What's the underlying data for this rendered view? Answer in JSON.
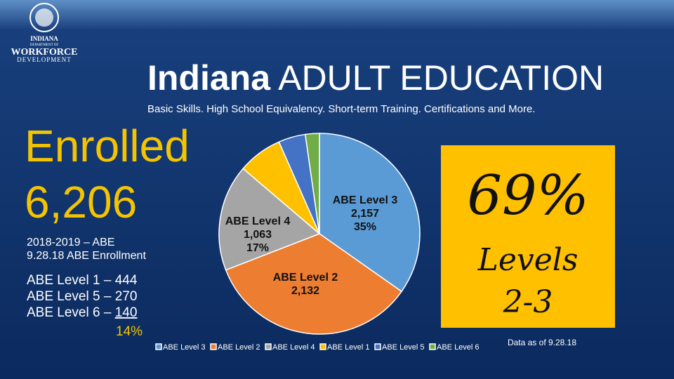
{
  "logo": {
    "line1": "INDIANA",
    "line2": "DEPARTMENT OF",
    "line3": "WORKFORCE",
    "line4": "DEVELOPMENT"
  },
  "header": {
    "title_bold": "Indiana",
    "title_rest": "ADULT EDUCATION",
    "subtitle": "Basic Skills. High School Equivalency. Short-term Training. Certifications and More."
  },
  "enrolled": {
    "heading": "Enrolled",
    "total": "6,206",
    "period": "2018-2019 – ABE",
    "note": "9.28.18 ABE Enrollment",
    "levels": [
      {
        "label": "ABE Level 1 –",
        "count": "444"
      },
      {
        "label": "ABE Level 5 –",
        "count": "270"
      },
      {
        "label": "ABE Level 6 –",
        "count": "140"
      }
    ],
    "share": "14%"
  },
  "highlight": {
    "percent": "69%",
    "line1": "Levels",
    "line2": "2-3"
  },
  "footnote": "Data as of 9.28.18",
  "chart_data": {
    "type": "pie",
    "categories": [
      "ABE Level 3",
      "ABE Level 2",
      "ABE Level 4",
      "ABE Level 1",
      "ABE Level 5",
      "ABE Level 6"
    ],
    "values": [
      2157,
      2132,
      1063,
      444,
      270,
      140
    ],
    "value_labels": [
      "2,157",
      "2,132",
      "1,063",
      null,
      null,
      null
    ],
    "percent_labels": [
      "35%",
      null,
      "17%",
      null,
      null,
      null
    ],
    "colors": [
      "#5b9bd5",
      "#ed7d31",
      "#a5a5a5",
      "#ffc000",
      "#4472c4",
      "#70ad47"
    ]
  }
}
